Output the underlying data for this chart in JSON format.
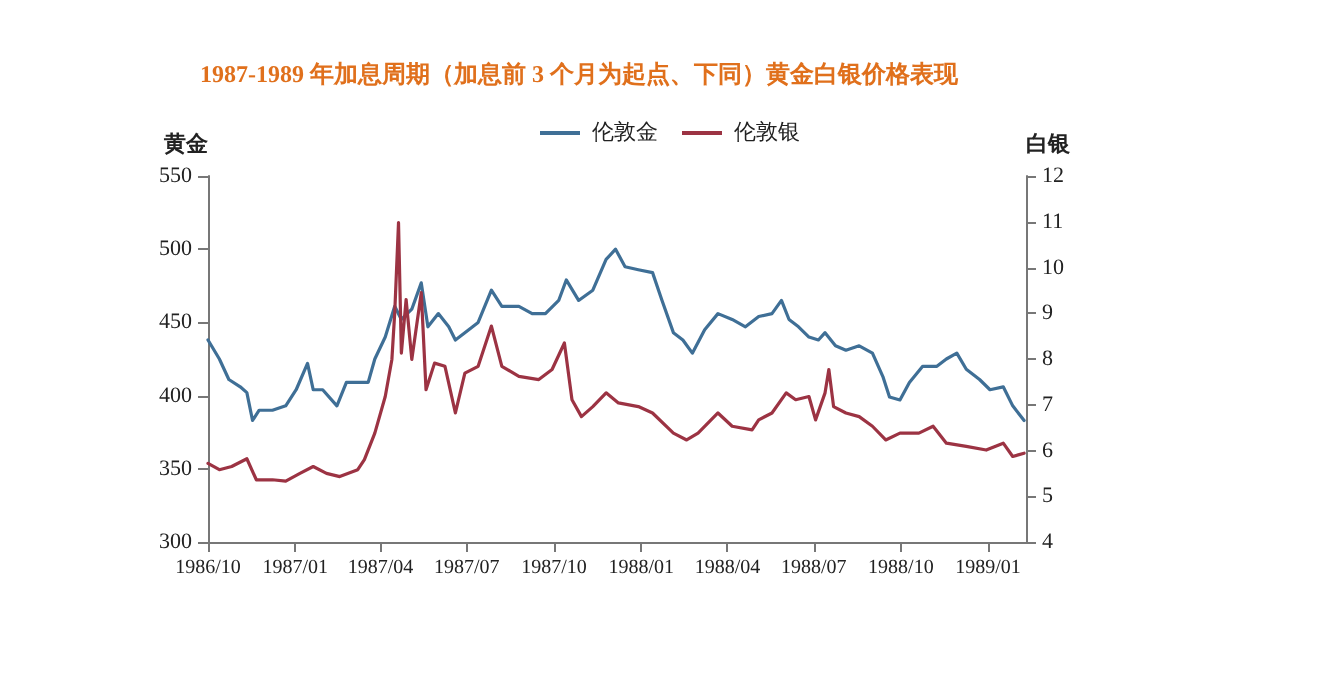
{
  "chart_data": {
    "type": "line",
    "title": "1987-1989 年加息周期（加息前 3 个月为起点、下同）黄金白银价格表现",
    "ylabel": "黄金",
    "y2label": "白银",
    "legend": "top",
    "marker": "none",
    "line_style": "solid",
    "grid": false,
    "xlim": [
      "1986-10-01",
      "1989-02-10"
    ],
    "xticks": [
      {
        "value": "1986-10-01",
        "label": "1986/10"
      },
      {
        "value": "1987-01-01",
        "label": "1987/01"
      },
      {
        "value": "1987-04-01",
        "label": "1987/04"
      },
      {
        "value": "1987-07-01",
        "label": "1987/07"
      },
      {
        "value": "1987-10-01",
        "label": "1987/10"
      },
      {
        "value": "1988-01-01",
        "label": "1988/01"
      },
      {
        "value": "1988-04-01",
        "label": "1988/04"
      },
      {
        "value": "1988-07-01",
        "label": "1988/07"
      },
      {
        "value": "1988-10-01",
        "label": "1988/10"
      },
      {
        "value": "1989-01-01",
        "label": "1989/01"
      }
    ],
    "ylim": [
      300,
      550
    ],
    "yticks": [
      300,
      350,
      400,
      450,
      500,
      550
    ],
    "y2lim": [
      4,
      12
    ],
    "y2ticks": [
      4,
      5,
      6,
      7,
      8,
      9,
      10,
      11,
      12
    ],
    "series": [
      {
        "name": "伦敦金",
        "color": "#3f6f96",
        "x": [
          "1986-10-01",
          "1986-10-13",
          "1986-10-23",
          "1986-11-04",
          "1986-11-11",
          "1986-11-17",
          "1986-11-24",
          "1986-12-08",
          "1986-12-22",
          "1987-01-02",
          "1987-01-14",
          "1987-01-20",
          "1987-01-30",
          "1987-02-14",
          "1987-02-24",
          "1987-03-08",
          "1987-03-19",
          "1987-03-26",
          "1987-04-06",
          "1987-04-16",
          "1987-04-23",
          "1987-05-04",
          "1987-05-14",
          "1987-05-21",
          "1987-06-01",
          "1987-06-12",
          "1987-06-19",
          "1987-06-29",
          "1987-07-13",
          "1987-07-27",
          "1987-08-07",
          "1987-08-25",
          "1987-09-08",
          "1987-09-22",
          "1987-10-06",
          "1987-10-14",
          "1987-10-27",
          "1987-11-11",
          "1987-11-25",
          "1987-12-05",
          "1987-12-15",
          "1987-12-29",
          "1988-01-13",
          "1988-01-23",
          "1988-02-04",
          "1988-02-14",
          "1988-02-24",
          "1988-03-08",
          "1988-03-22",
          "1988-04-06",
          "1988-04-20",
          "1988-05-04",
          "1988-05-18",
          "1988-05-28",
          "1988-06-05",
          "1988-06-15",
          "1988-06-26",
          "1988-07-06",
          "1988-07-13",
          "1988-07-24",
          "1988-08-04",
          "1988-08-18",
          "1988-09-01",
          "1988-09-12",
          "1988-09-19",
          "1988-09-30",
          "1988-10-10",
          "1988-10-24",
          "1988-11-08",
          "1988-11-18",
          "1988-11-29",
          "1988-12-09",
          "1988-12-23",
          "1989-01-03",
          "1989-01-17",
          "1989-01-27",
          "1989-02-08"
        ],
        "values": [
          438,
          425,
          411,
          406,
          402,
          383,
          390,
          390,
          393,
          404,
          422,
          404,
          404,
          393,
          409,
          409,
          409,
          425,
          440,
          461,
          452,
          459,
          477,
          447,
          456,
          447,
          438,
          443,
          450,
          472,
          461,
          461,
          456,
          456,
          465,
          479,
          465,
          472,
          493,
          500,
          488,
          486,
          484,
          465,
          443,
          438,
          429,
          445,
          456,
          452,
          447,
          454,
          456,
          465,
          452,
          447,
          440,
          438,
          443,
          434,
          431,
          434,
          429,
          413,
          399,
          397,
          409,
          420,
          420,
          425,
          429,
          418,
          411,
          404,
          406,
          393,
          383
        ]
      },
      {
        "name": "伦敦银",
        "color": "#9c3343",
        "axis": "y2",
        "x": [
          "1986-10-01",
          "1986-10-13",
          "1986-10-26",
          "1986-11-11",
          "1986-11-21",
          "1986-12-08",
          "1986-12-22",
          "1987-01-06",
          "1987-01-20",
          "1987-02-03",
          "1987-02-17",
          "1987-03-08",
          "1987-03-15",
          "1987-03-26",
          "1987-04-06",
          "1987-04-13",
          "1987-04-16",
          "1987-04-20",
          "1987-04-23",
          "1987-04-28",
          "1987-05-04",
          "1987-05-14",
          "1987-05-19",
          "1987-05-28",
          "1987-06-08",
          "1987-06-19",
          "1987-06-29",
          "1987-07-13",
          "1987-07-27",
          "1987-08-07",
          "1987-08-25",
          "1987-09-15",
          "1987-09-29",
          "1987-10-12",
          "1987-10-20",
          "1987-10-30",
          "1987-11-11",
          "1987-11-25",
          "1987-12-08",
          "1987-12-29",
          "1988-01-13",
          "1988-02-04",
          "1988-02-18",
          "1988-03-01",
          "1988-03-22",
          "1988-04-06",
          "1988-04-27",
          "1988-05-04",
          "1988-05-18",
          "1988-06-02",
          "1988-06-12",
          "1988-06-26",
          "1988-07-03",
          "1988-07-13",
          "1988-07-17",
          "1988-07-22",
          "1988-08-04",
          "1988-08-18",
          "1988-09-01",
          "1988-09-15",
          "1988-09-30",
          "1988-10-20",
          "1988-11-04",
          "1988-11-18",
          "1988-12-09",
          "1988-12-30",
          "1989-01-17",
          "1989-01-27",
          "1989-02-08"
        ],
        "values": [
          5.72,
          5.58,
          5.65,
          5.82,
          5.36,
          5.36,
          5.33,
          5.5,
          5.65,
          5.5,
          5.43,
          5.58,
          5.8,
          6.38,
          7.18,
          7.99,
          9.01,
          10.98,
          8.13,
          9.3,
          7.99,
          9.45,
          7.33,
          7.91,
          7.84,
          6.82,
          7.69,
          7.84,
          8.72,
          7.84,
          7.62,
          7.55,
          7.77,
          8.35,
          7.11,
          6.74,
          6.96,
          7.26,
          7.04,
          6.96,
          6.82,
          6.38,
          6.23,
          6.38,
          6.82,
          6.53,
          6.45,
          6.67,
          6.82,
          7.26,
          7.11,
          7.18,
          6.67,
          7.26,
          7.77,
          6.96,
          6.82,
          6.74,
          6.53,
          6.23,
          6.38,
          6.38,
          6.53,
          6.16,
          6.09,
          6.01,
          6.16,
          5.87,
          5.94
        ]
      }
    ]
  }
}
